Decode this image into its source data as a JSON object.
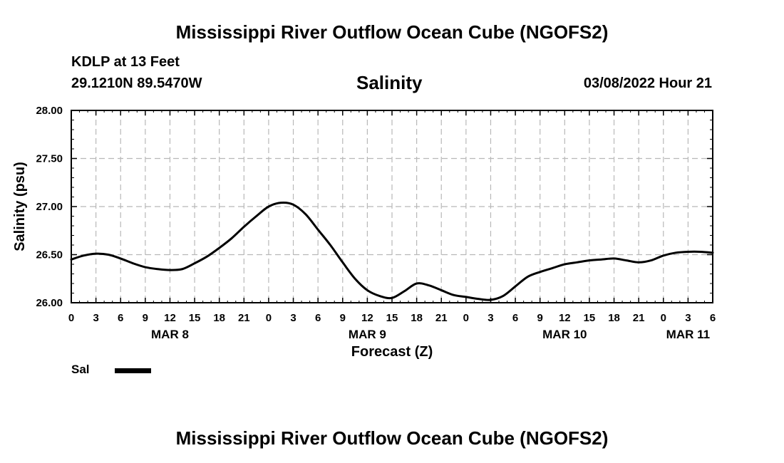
{
  "page": {
    "title_top": "Mississippi River Outflow Ocean Cube (NGOFS2)",
    "title_bottom": "Mississippi River Outflow Ocean Cube (NGOFS2)",
    "station": "KDLP at 13 Feet",
    "coords": "29.1210N  89.5470W",
    "variable": "Salinity",
    "timestamp": "03/08/2022 Hour 21",
    "legend_label": "Sal"
  },
  "chart_data": {
    "type": "line",
    "title": "Salinity",
    "xlabel": "Forecast (Z)",
    "ylabel": "Salinity (psu)",
    "x_unit": "hours since Mar 8 00Z",
    "xlim": [
      0,
      78
    ],
    "ylim": [
      26.0,
      28.0
    ],
    "y_ticks": [
      "26.00",
      "26.50",
      "27.00",
      "27.50",
      "28.00"
    ],
    "x_ticks": [
      {
        "x": 0,
        "label": "0"
      },
      {
        "x": 3,
        "label": "3"
      },
      {
        "x": 6,
        "label": "6"
      },
      {
        "x": 9,
        "label": "9"
      },
      {
        "x": 12,
        "label": "12"
      },
      {
        "x": 15,
        "label": "15"
      },
      {
        "x": 18,
        "label": "18"
      },
      {
        "x": 21,
        "label": "21"
      },
      {
        "x": 24,
        "label": "0"
      },
      {
        "x": 27,
        "label": "3"
      },
      {
        "x": 30,
        "label": "6"
      },
      {
        "x": 33,
        "label": "9"
      },
      {
        "x": 36,
        "label": "12"
      },
      {
        "x": 39,
        "label": "15"
      },
      {
        "x": 42,
        "label": "18"
      },
      {
        "x": 45,
        "label": "21"
      },
      {
        "x": 48,
        "label": "0"
      },
      {
        "x": 51,
        "label": "3"
      },
      {
        "x": 54,
        "label": "6"
      },
      {
        "x": 57,
        "label": "9"
      },
      {
        "x": 60,
        "label": "12"
      },
      {
        "x": 63,
        "label": "15"
      },
      {
        "x": 66,
        "label": "18"
      },
      {
        "x": 69,
        "label": "21"
      },
      {
        "x": 72,
        "label": "0"
      },
      {
        "x": 75,
        "label": "3"
      },
      {
        "x": 78,
        "label": "6"
      }
    ],
    "date_labels": [
      {
        "x": 12,
        "label": "MAR 8"
      },
      {
        "x": 36,
        "label": "MAR 9"
      },
      {
        "x": 60,
        "label": "MAR 10"
      },
      {
        "x": 75,
        "label": "MAR 11"
      }
    ],
    "grid": true,
    "series": [
      {
        "name": "Sal",
        "color": "#000000",
        "x": [
          0,
          1.5,
          3,
          4.5,
          6,
          7.5,
          9,
          10.5,
          12,
          13.5,
          15,
          16.5,
          18,
          19.5,
          21,
          22.5,
          24,
          25.5,
          27,
          28.5,
          30,
          31.5,
          33,
          34.5,
          36,
          37.5,
          39,
          40.5,
          42,
          43.5,
          45,
          46.5,
          48,
          49.5,
          51,
          52.5,
          54,
          55.5,
          57,
          58.5,
          60,
          61.5,
          63,
          64.5,
          66,
          67.5,
          69,
          70.5,
          72,
          73.5,
          75,
          76.5,
          78
        ],
        "values": [
          26.45,
          26.49,
          26.51,
          26.5,
          26.46,
          26.41,
          26.37,
          26.35,
          26.34,
          26.35,
          26.41,
          26.48,
          26.57,
          26.67,
          26.79,
          26.9,
          27.0,
          27.04,
          27.02,
          26.92,
          26.76,
          26.6,
          26.42,
          26.25,
          26.13,
          26.07,
          26.05,
          26.12,
          26.2,
          26.18,
          26.13,
          26.08,
          26.06,
          26.04,
          26.03,
          26.07,
          26.17,
          26.27,
          26.32,
          26.36,
          26.4,
          26.42,
          26.44,
          26.45,
          26.46,
          26.44,
          26.42,
          26.44,
          26.49,
          26.52,
          26.53,
          26.53,
          26.52
        ]
      }
    ],
    "legend_position": "bottom-left"
  }
}
